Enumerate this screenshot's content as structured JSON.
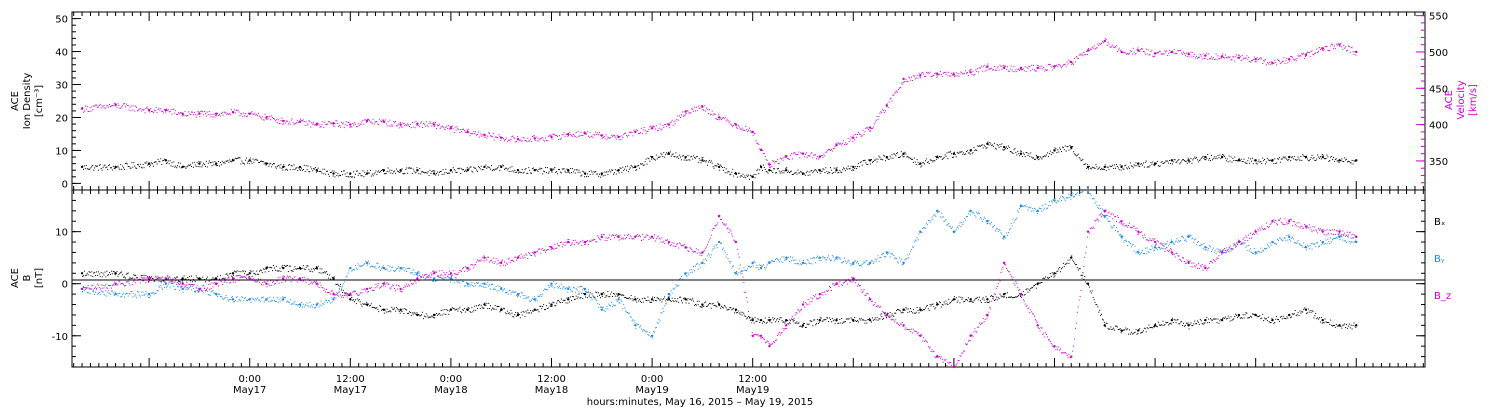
{
  "chart_data": [
    {
      "type": "scatter",
      "panel": "top",
      "ylabel_left": [
        "ACE",
        "Ion Density",
        "[cm⁻³]"
      ],
      "ylabel_right": [
        "ACE",
        "Velocity",
        "[km/s]"
      ],
      "ylim_left": [
        -2,
        52
      ],
      "ylim_right": [
        310,
        555
      ],
      "yticks_left": [
        0,
        10,
        20,
        30,
        40,
        50
      ],
      "yticks_right": [
        350,
        400,
        450,
        500,
        550
      ],
      "series": [
        {
          "axis": "left",
          "color": "#000000",
          "x": [
            -20,
            -16,
            -12,
            -10,
            -8,
            -6,
            -4,
            -2,
            0,
            2,
            4,
            6,
            8,
            10,
            12,
            14,
            16,
            18,
            20,
            22,
            24,
            26,
            28,
            30,
            32,
            34,
            36,
            38,
            40,
            42,
            44,
            46,
            48,
            50,
            52,
            54,
            56,
            58,
            60,
            61,
            62,
            64,
            66,
            68,
            70,
            72,
            74,
            76,
            78,
            80,
            82,
            84,
            86,
            88,
            90,
            92,
            94,
            96,
            98,
            100,
            102,
            104,
            106,
            108,
            110,
            112,
            114,
            116,
            118,
            120,
            122,
            124,
            126,
            128,
            130,
            132
          ],
          "values": [
            5,
            5,
            6,
            7,
            5,
            6,
            6,
            7,
            7,
            6,
            5,
            5,
            4,
            3,
            3,
            3,
            4,
            4,
            4,
            3,
            4,
            4,
            5,
            5,
            4,
            4,
            4,
            4,
            3,
            3,
            4,
            5,
            8,
            9,
            8,
            7,
            5,
            3,
            2,
            5,
            4,
            4,
            3,
            4,
            4,
            5,
            7,
            8,
            9,
            6,
            8,
            9,
            10,
            12,
            11,
            9,
            8,
            10,
            11,
            5,
            5,
            5,
            6,
            6,
            7,
            7,
            8,
            8,
            7,
            7,
            7,
            8,
            8,
            8,
            7,
            7
          ]
        },
        {
          "axis": "right",
          "color": "#cc00cc",
          "x": [
            -20,
            -16,
            -12,
            -10,
            -8,
            -6,
            -4,
            -2,
            0,
            2,
            4,
            6,
            8,
            10,
            12,
            14,
            16,
            18,
            20,
            22,
            24,
            26,
            28,
            30,
            32,
            34,
            36,
            38,
            40,
            42,
            44,
            46,
            48,
            50,
            52,
            54,
            56,
            58,
            60,
            61,
            62,
            64,
            66,
            68,
            70,
            72,
            74,
            76,
            78,
            80,
            82,
            84,
            86,
            88,
            90,
            92,
            94,
            96,
            98,
            100,
            102,
            104,
            106,
            108,
            110,
            112,
            114,
            116,
            118,
            120,
            122,
            124,
            126,
            128,
            130,
            132
          ],
          "values": [
            422,
            427,
            420,
            420,
            415,
            415,
            415,
            417,
            415,
            410,
            405,
            404,
            400,
            402,
            400,
            405,
            404,
            400,
            401,
            400,
            395,
            390,
            386,
            382,
            380,
            381,
            383,
            387,
            388,
            385,
            383,
            390,
            395,
            400,
            418,
            425,
            410,
            400,
            390,
            365,
            345,
            356,
            360,
            356,
            372,
            382,
            396,
            426,
            463,
            468,
            470,
            469,
            472,
            480,
            478,
            478,
            478,
            480,
            486,
            502,
            515,
            500,
            502,
            498,
            500,
            497,
            495,
            494,
            492,
            490,
            485,
            490,
            496,
            505,
            510,
            500
          ]
        }
      ]
    },
    {
      "type": "scatter",
      "panel": "bottom",
      "ylabel": [
        "ACE",
        "B",
        "[nT]"
      ],
      "ylim": [
        -16,
        18
      ],
      "yticks": [
        -10,
        0,
        10
      ],
      "legend": [
        "Bₓ",
        "Bᵧ",
        "B_z"
      ],
      "series": [
        {
          "name": "Bₓ",
          "color": "#000000",
          "x": [
            -20,
            -16,
            -12,
            -10,
            -8,
            -6,
            -4,
            -2,
            0,
            2,
            4,
            6,
            8,
            10,
            12,
            14,
            16,
            18,
            20,
            22,
            24,
            26,
            28,
            30,
            32,
            34,
            36,
            38,
            40,
            42,
            44,
            46,
            48,
            50,
            52,
            54,
            56,
            58,
            60,
            61,
            62,
            64,
            66,
            68,
            70,
            72,
            74,
            76,
            78,
            80,
            82,
            84,
            86,
            88,
            90,
            92,
            94,
            96,
            98,
            100,
            102,
            104,
            106,
            108,
            110,
            112,
            114,
            116,
            118,
            120,
            122,
            124,
            126,
            128,
            130,
            132
          ],
          "values": [
            2,
            2,
            1,
            1,
            1,
            1,
            1,
            2,
            2,
            3,
            3,
            3,
            3,
            1,
            -3,
            -4,
            -5,
            -5,
            -6,
            -6,
            -5,
            -5,
            -4,
            -5,
            -6,
            -5,
            -4,
            -3,
            -2,
            -2,
            -2,
            -3,
            -3,
            -3,
            -3,
            -4,
            -4,
            -5,
            -7,
            -7,
            -7,
            -7,
            -8,
            -7,
            -7,
            -7,
            -7,
            -6,
            -5,
            -5,
            -4,
            -3,
            -3,
            -3,
            -2,
            -2,
            0,
            2,
            5,
            0,
            -8,
            -9,
            -9,
            -8,
            -7,
            -8,
            -7,
            -7,
            -6,
            -6,
            -7,
            -6,
            -5,
            -7,
            -8,
            -8
          ]
        },
        {
          "name": "Bᵧ",
          "color": "#1e88e5",
          "x": [
            -20,
            -16,
            -12,
            -10,
            -8,
            -6,
            -4,
            -2,
            0,
            2,
            4,
            6,
            8,
            10,
            12,
            14,
            16,
            18,
            20,
            22,
            24,
            26,
            28,
            30,
            32,
            34,
            36,
            38,
            40,
            42,
            44,
            46,
            48,
            50,
            52,
            54,
            56,
            58,
            60,
            61,
            62,
            64,
            66,
            68,
            70,
            72,
            74,
            76,
            78,
            80,
            82,
            84,
            86,
            88,
            90,
            92,
            94,
            96,
            98,
            100,
            102,
            104,
            106,
            108,
            110,
            112,
            114,
            116,
            118,
            120,
            122,
            124,
            126,
            128,
            130,
            132
          ],
          "values": [
            -1,
            -2,
            -2,
            0,
            -1,
            -1,
            -2,
            -3,
            -3,
            -3,
            -3,
            -4,
            -4,
            -3,
            3,
            4,
            3,
            3,
            2,
            1,
            1,
            0,
            0,
            -1,
            -2,
            -3,
            0,
            -1,
            -1,
            -5,
            -3,
            -8,
            -10,
            -2,
            2,
            4,
            8,
            2,
            4,
            3,
            4,
            5,
            4,
            5,
            5,
            4,
            4,
            6,
            4,
            10,
            14,
            10,
            14,
            12,
            9,
            15,
            14,
            16,
            17,
            18,
            13,
            9,
            6,
            7,
            8,
            9,
            7,
            6,
            8,
            6,
            8,
            9,
            7,
            8,
            9,
            8
          ]
        },
        {
          "name": "B_z",
          "color": "#cc00cc",
          "x": [
            -20,
            -16,
            -12,
            -10,
            -8,
            -6,
            -4,
            -2,
            0,
            2,
            4,
            6,
            8,
            10,
            12,
            14,
            16,
            18,
            20,
            22,
            24,
            26,
            28,
            30,
            32,
            34,
            36,
            38,
            40,
            42,
            44,
            46,
            48,
            50,
            52,
            54,
            56,
            58,
            60,
            61,
            62,
            64,
            66,
            68,
            70,
            72,
            74,
            76,
            78,
            80,
            82,
            84,
            86,
            88,
            90,
            92,
            94,
            96,
            98,
            100,
            102,
            104,
            106,
            108,
            110,
            112,
            114,
            116,
            118,
            120,
            122,
            124,
            126,
            128,
            130,
            132
          ],
          "values": [
            -1,
            0,
            1,
            1,
            0,
            -1,
            0,
            1,
            1,
            0,
            1,
            1,
            0,
            -2,
            -2,
            -1,
            0,
            -1,
            1,
            2,
            2,
            3,
            5,
            4,
            5,
            6,
            7,
            8,
            8,
            9,
            9,
            9,
            9,
            8,
            7,
            6,
            13,
            8,
            -10,
            -10,
            -12,
            -8,
            -4,
            -2,
            0,
            1,
            -3,
            -6,
            -8,
            -10,
            -14,
            -16,
            -10,
            -6,
            4,
            -2,
            -8,
            -12,
            -14,
            10,
            14,
            12,
            10,
            8,
            6,
            4,
            3,
            6,
            8,
            10,
            12,
            12,
            11,
            10,
            10,
            9
          ]
        }
      ]
    }
  ],
  "time_axis": {
    "xlim": [
      -21.2,
      140.2
    ],
    "ticks": [
      {
        "time": "0:00",
        "date": "May17"
      },
      {
        "time": "12:00",
        "date": "May17"
      },
      {
        "time": "0:00",
        "date": "May18"
      },
      {
        "time": "12:00",
        "date": "May18"
      },
      {
        "time": "0:00",
        "date": "May19"
      },
      {
        "time": "12:00",
        "date": "May19"
      }
    ],
    "label": "hours:minutes, May 16, 2015 – May 19, 2015"
  }
}
